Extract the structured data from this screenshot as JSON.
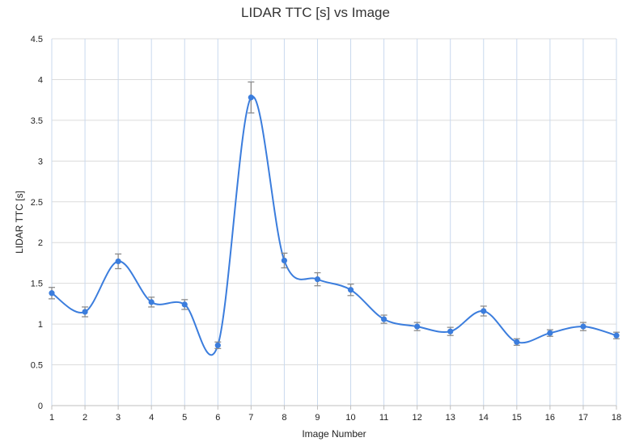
{
  "chart_data": {
    "type": "line",
    "title": "LIDAR TTC [s] vs Image",
    "xlabel": "Image Number",
    "ylabel": "LIDAR TTC [s]",
    "x": [
      1,
      2,
      3,
      4,
      5,
      6,
      7,
      8,
      9,
      10,
      11,
      12,
      13,
      14,
      15,
      16,
      17,
      18
    ],
    "y_ticks": [
      "0",
      "0.5",
      "1",
      "1.5",
      "2",
      "2.5",
      "3",
      "3.5",
      "4",
      "4.5"
    ],
    "ylim": [
      0,
      4.5
    ],
    "xlim": [
      1,
      18
    ],
    "series": [
      {
        "values": [
          1.38,
          1.15,
          1.77,
          1.27,
          1.24,
          0.74,
          3.78,
          1.78,
          1.55,
          1.42,
          1.06,
          0.97,
          0.91,
          1.16,
          0.78,
          0.89,
          0.97,
          0.86
        ],
        "error": [
          0.07,
          0.06,
          0.09,
          0.06,
          0.06,
          0.04,
          0.19,
          0.09,
          0.08,
          0.07,
          0.05,
          0.05,
          0.05,
          0.06,
          0.04,
          0.04,
          0.05,
          0.04
        ],
        "smooth": true,
        "color": "#3b7ddd",
        "error_bar_color": "#8c8c8c"
      }
    ],
    "grid": true,
    "legend": "none"
  }
}
